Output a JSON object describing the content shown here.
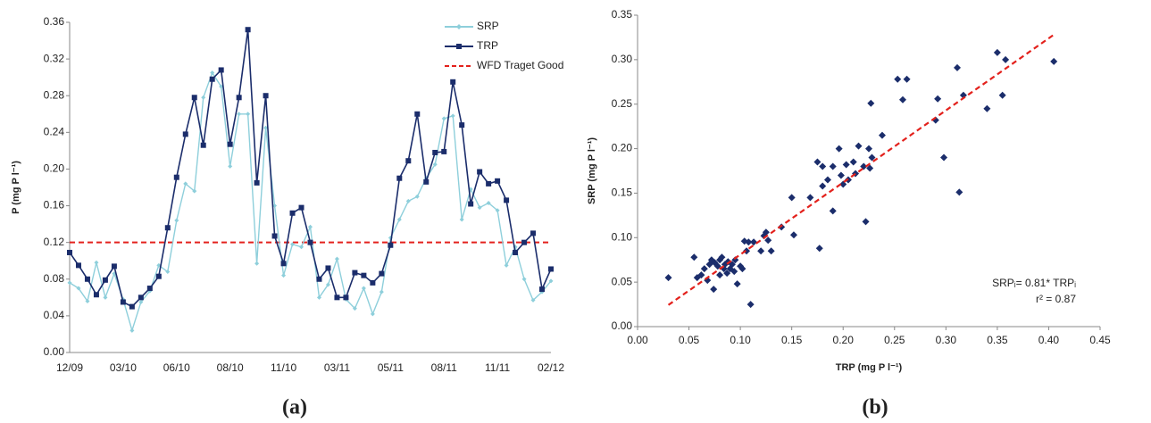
{
  "chart_data": [
    {
      "type": "line",
      "ylabel": "P (mg P l⁻¹)",
      "caption": "(a)",
      "categories": [
        "12/09",
        null,
        null,
        null,
        null,
        null,
        "03/10",
        null,
        null,
        null,
        null,
        null,
        "06/10",
        null,
        null,
        null,
        null,
        null,
        "08/10",
        null,
        null,
        null,
        null,
        null,
        "11/10",
        null,
        null,
        null,
        null,
        null,
        "03/11",
        null,
        null,
        null,
        null,
        null,
        "05/11",
        null,
        null,
        null,
        null,
        null,
        "08/11",
        null,
        null,
        null,
        null,
        null,
        "11/11",
        null,
        null,
        null,
        null,
        null,
        "02/12"
      ],
      "series": [
        {
          "name": "SRP",
          "color": "#8ecfdb",
          "marker": "diamond",
          "values": [
            0.076,
            0.07,
            0.056,
            0.098,
            0.06,
            0.086,
            0.058,
            0.024,
            0.055,
            0.067,
            0.095,
            0.088,
            0.144,
            0.184,
            0.176,
            0.278,
            0.305,
            0.29,
            0.203,
            0.26,
            0.26,
            0.097,
            0.245,
            0.16,
            0.084,
            0.118,
            0.115,
            0.137,
            0.06,
            0.074,
            0.102,
            0.058,
            0.048,
            0.07,
            0.042,
            0.066,
            0.125,
            0.145,
            0.165,
            0.17,
            0.19,
            0.205,
            0.255,
            0.258,
            0.145,
            0.178,
            0.158,
            0.163,
            0.155,
            0.095,
            0.115,
            0.08,
            0.057,
            0.066,
            0.078
          ]
        },
        {
          "name": "TRP",
          "color": "#1b2d6b",
          "marker": "square",
          "values": [
            0.109,
            0.095,
            0.08,
            0.063,
            0.079,
            0.094,
            0.055,
            0.05,
            0.06,
            0.07,
            0.083,
            0.136,
            0.191,
            0.238,
            0.278,
            0.226,
            0.298,
            0.308,
            0.227,
            0.278,
            0.352,
            0.185,
            0.28,
            0.127,
            0.097,
            0.152,
            0.158,
            0.12,
            0.08,
            0.092,
            0.06,
            0.06,
            0.087,
            0.084,
            0.076,
            0.086,
            0.117,
            0.19,
            0.209,
            0.26,
            0.186,
            0.218,
            0.219,
            0.295,
            0.248,
            0.162,
            0.197,
            0.184,
            0.187,
            0.166,
            0.109,
            0.12,
            0.13,
            0.069,
            0.091
          ]
        }
      ],
      "reference_lines": [
        {
          "name": "WFD Traget Good",
          "value": 0.12,
          "color": "#e3211c"
        }
      ],
      "ylim": [
        0,
        0.36
      ],
      "yticks": [
        {
          "value": 0,
          "label": "0.00"
        },
        {
          "value": 0.04,
          "label": "0.04"
        },
        {
          "value": 0.08,
          "label": "0.08"
        },
        {
          "value": 0.12,
          "label": "0.12"
        },
        {
          "value": 0.16,
          "label": "0.16"
        },
        {
          "value": 0.2,
          "label": "0.20"
        },
        {
          "value": 0.24,
          "label": "0.24"
        },
        {
          "value": 0.28,
          "label": "0.28"
        },
        {
          "value": 0.32,
          "label": "0.32"
        },
        {
          "value": 0.36,
          "label": "0.36"
        }
      ],
      "grid": false
    },
    {
      "type": "scatter",
      "xlabel": "TRP (mg P l⁻¹)",
      "ylabel": "SRP (mg P l⁻¹)",
      "caption": "(b)",
      "color": "#1b2d6b",
      "x": [
        0.03,
        0.055,
        0.058,
        0.062,
        0.065,
        0.068,
        0.07,
        0.072,
        0.074,
        0.075,
        0.078,
        0.08,
        0.08,
        0.082,
        0.084,
        0.085,
        0.087,
        0.088,
        0.09,
        0.092,
        0.094,
        0.095,
        0.097,
        0.1,
        0.102,
        0.104,
        0.106,
        0.108,
        0.11,
        0.113,
        0.12,
        0.123,
        0.125,
        0.127,
        0.13,
        0.14,
        0.15,
        0.152,
        0.168,
        0.175,
        0.177,
        0.18,
        0.18,
        0.185,
        0.19,
        0.19,
        0.196,
        0.198,
        0.2,
        0.203,
        0.205,
        0.21,
        0.212,
        0.215,
        0.22,
        0.222,
        0.225,
        0.226,
        0.227,
        0.228,
        0.238,
        0.253,
        0.258,
        0.262,
        0.29,
        0.292,
        0.298,
        0.311,
        0.313,
        0.317,
        0.34,
        0.35,
        0.355,
        0.358,
        0.405
      ],
      "y": [
        0.055,
        0.078,
        0.055,
        0.058,
        0.065,
        0.052,
        0.07,
        0.075,
        0.042,
        0.072,
        0.068,
        0.075,
        0.058,
        0.078,
        0.065,
        0.07,
        0.06,
        0.073,
        0.065,
        0.07,
        0.062,
        0.075,
        0.048,
        0.068,
        0.065,
        0.096,
        0.085,
        0.095,
        0.025,
        0.095,
        0.085,
        0.102,
        0.106,
        0.097,
        0.085,
        0.112,
        0.145,
        0.103,
        0.145,
        0.185,
        0.088,
        0.18,
        0.158,
        0.165,
        0.13,
        0.18,
        0.2,
        0.17,
        0.16,
        0.182,
        0.165,
        0.185,
        0.172,
        0.203,
        0.18,
        0.118,
        0.2,
        0.178,
        0.251,
        0.19,
        0.215,
        0.278,
        0.255,
        0.278,
        0.232,
        0.256,
        0.19,
        0.291,
        0.151,
        0.26,
        0.245,
        0.308,
        0.26,
        0.3,
        0.298
      ],
      "trendline": {
        "slope": 0.81,
        "x": [
          0.03,
          0.405
        ],
        "color": "#e3211c"
      },
      "annotations": [
        "SRPᵢ= 0.81* TRPᵢ",
        "r² = 0.87"
      ],
      "xlim": [
        0,
        0.45
      ],
      "xticks": [
        {
          "value": 0,
          "label": "0.00"
        },
        {
          "value": 0.05,
          "label": "0.05"
        },
        {
          "value": 0.1,
          "label": "0.10"
        },
        {
          "value": 0.15,
          "label": "0.15"
        },
        {
          "value": 0.2,
          "label": "0.20"
        },
        {
          "value": 0.25,
          "label": "0.25"
        },
        {
          "value": 0.3,
          "label": "0.30"
        },
        {
          "value": 0.35,
          "label": "0.35"
        },
        {
          "value": 0.4,
          "label": "0.40"
        },
        {
          "value": 0.45,
          "label": "0.45"
        }
      ],
      "ylim": [
        0,
        0.35
      ],
      "yticks": [
        {
          "value": 0,
          "label": "0.00"
        },
        {
          "value": 0.05,
          "label": "0.05"
        },
        {
          "value": 0.1,
          "label": "0.10"
        },
        {
          "value": 0.15,
          "label": "0.15"
        },
        {
          "value": 0.2,
          "label": "0.20"
        },
        {
          "value": 0.25,
          "label": "0.25"
        },
        {
          "value": 0.3,
          "label": "0.30"
        },
        {
          "value": 0.35,
          "label": "0.35"
        }
      ],
      "grid": false
    }
  ]
}
